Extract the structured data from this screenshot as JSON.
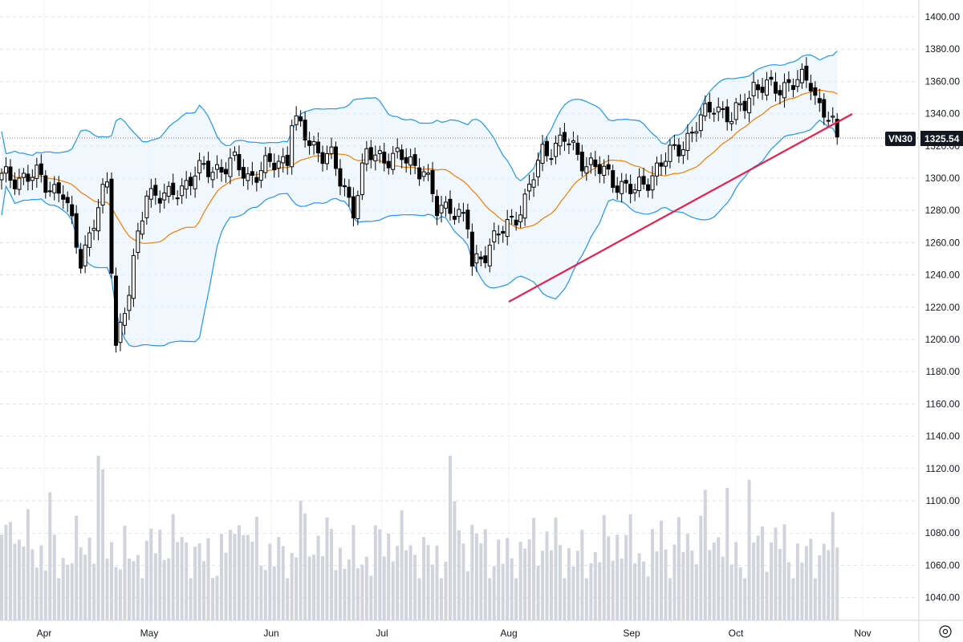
{
  "symbol": "VN30",
  "last_price": "1325.54",
  "colors": {
    "up_fill": "#ffffff",
    "candle": "#000000",
    "bb_line": "#2196f3",
    "bb_fill": "#e3f2fd",
    "ma_line": "#f57c00",
    "trendline": "#e91e4d",
    "volume": "#d1d4dc",
    "grid": "#e0e3eb",
    "axis": "#787b86"
  },
  "chart_data": {
    "type": "candlestick",
    "y_ticks": [
      "1040.00",
      "1060.00",
      "1080.00",
      "1100.00",
      "1120.00",
      "1140.00",
      "1160.00",
      "1180.00",
      "1200.00",
      "1220.00",
      "1240.00",
      "1260.00",
      "1280.00",
      "1300.00",
      "1320.00",
      "1340.00",
      "1360.00",
      "1380.00",
      "1400.00"
    ],
    "ylim": [
      1025,
      1415
    ],
    "x_ticks": [
      "Apr",
      "May",
      "Jun",
      "Jul",
      "Aug",
      "Sep",
      "Oct",
      "Nov"
    ],
    "indicators": [
      "Bollinger Bands (20)",
      "Moving average",
      "Volume",
      "Trendline"
    ],
    "grid": true,
    "key_points": [
      {
        "label": "Apr low",
        "value": 1248
      },
      {
        "label": "Late Apr low",
        "value": 1187
      },
      {
        "label": "Jun high",
        "value": 1339
      },
      {
        "label": "Aug low",
        "value": 1226
      },
      {
        "label": "Oct high",
        "value": 1374
      },
      {
        "label": "Last close",
        "value": 1325.54
      }
    ]
  }
}
